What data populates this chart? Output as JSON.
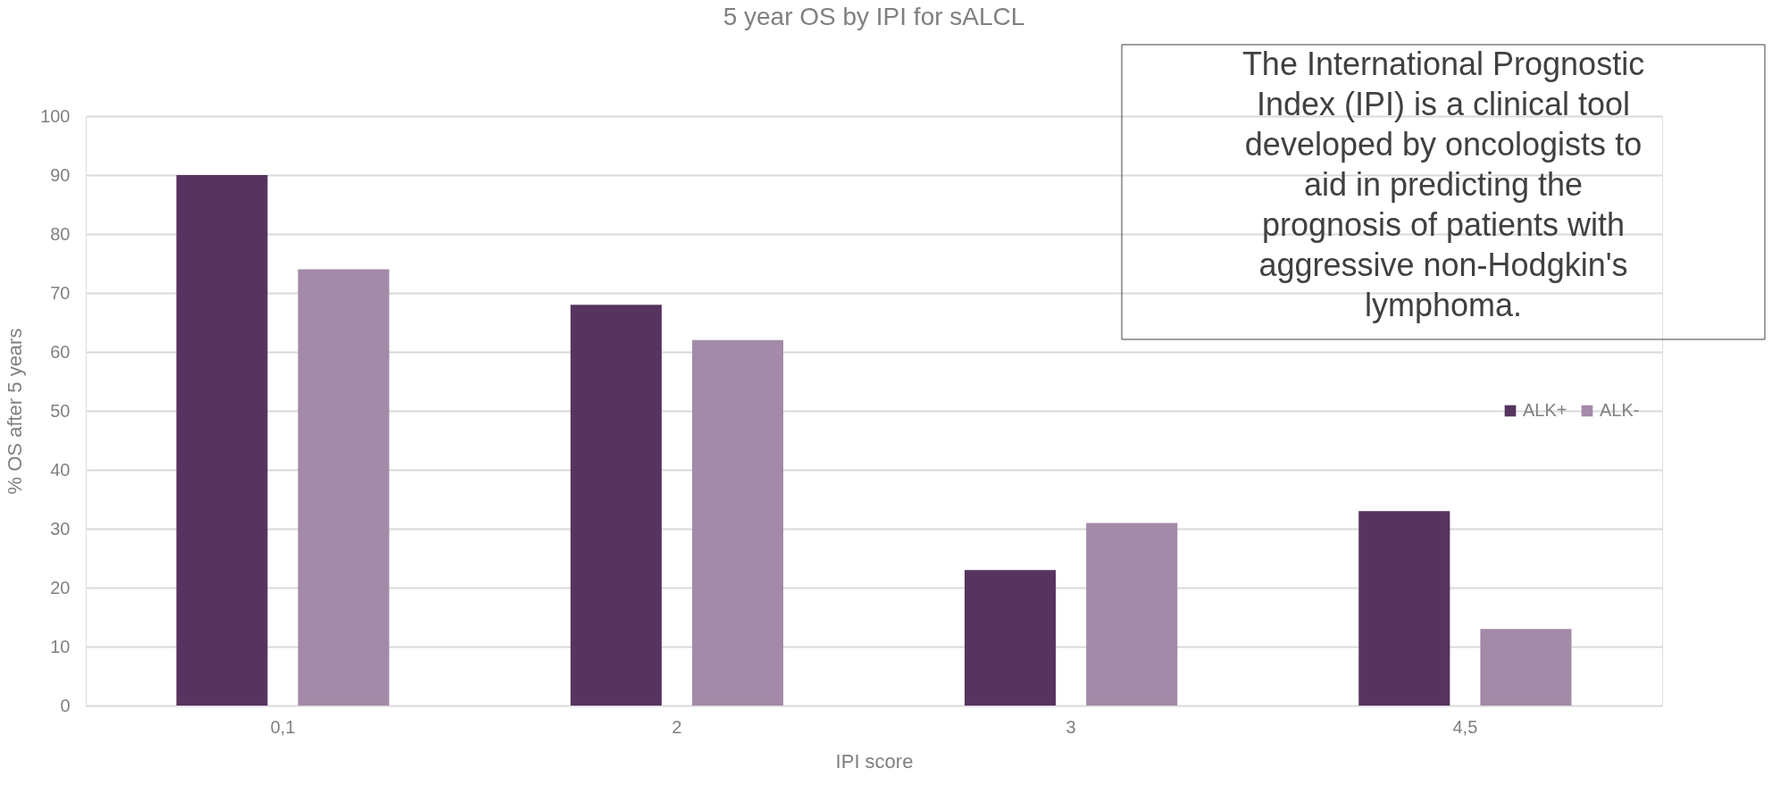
{
  "chart_data": {
    "type": "bar",
    "title": "5 year OS by IPI for sALCL",
    "xlabel": "IPI score",
    "ylabel": "% OS after 5 years",
    "categories": [
      "0,1",
      "2",
      "3",
      "4,5"
    ],
    "series": [
      {
        "name": "ALK+",
        "color": "#57345f",
        "values": [
          90,
          68,
          23,
          33
        ]
      },
      {
        "name": "ALK-",
        "color": "#a38aa8",
        "values": [
          74,
          62,
          31,
          13
        ]
      }
    ],
    "ylim": [
      0,
      100
    ],
    "yticks": [
      0,
      10,
      20,
      30,
      40,
      50,
      60,
      70,
      80,
      90,
      100
    ],
    "grid": "y",
    "legend": "right",
    "annotations": [
      "The International Prognostic Index (IPI) is a clinical tool developed by oncologists to aid in predicting the prognosis of patients with aggressive non-Hodgkin's lymphoma."
    ]
  }
}
